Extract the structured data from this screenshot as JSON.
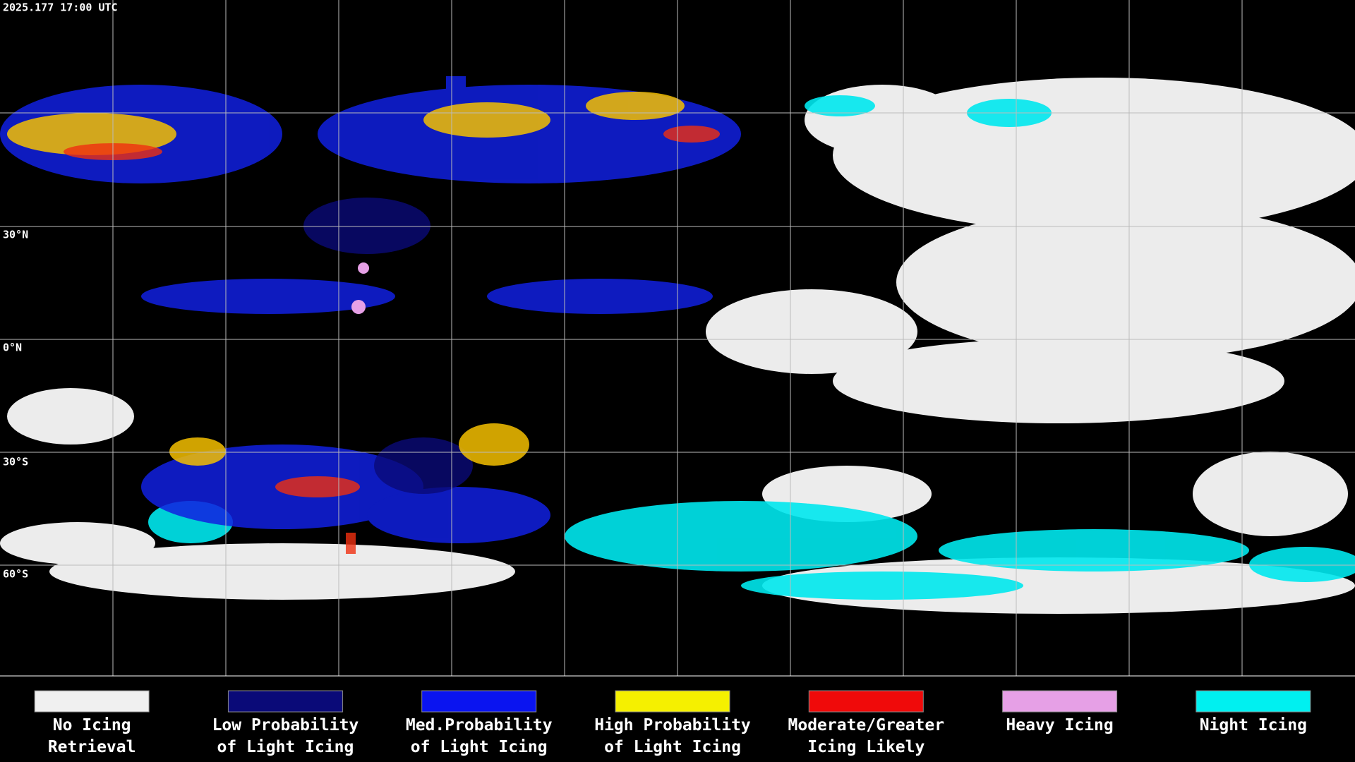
{
  "header": {
    "timestamp": "2025.177 17:00 UTC"
  },
  "latitude_labels": [
    "30°N",
    "0°N",
    "30°S",
    "60°S"
  ],
  "legend": [
    {
      "lines": [
        "No Icing",
        "Retrieval"
      ],
      "color": "#f0f0f0"
    },
    {
      "lines": [
        "Low Probability",
        "of Light Icing"
      ],
      "color": "#0a0a78"
    },
    {
      "lines": [
        "Med.Probability",
        "of Light Icing"
      ],
      "color": "#0a14f0"
    },
    {
      "lines": [
        "High Probability",
        "of Light Icing"
      ],
      "color": "#f5f000"
    },
    {
      "lines": [
        "Moderate/Greater",
        "Icing Likely"
      ],
      "color": "#f00a0a"
    },
    {
      "lines": [
        "Heavy Icing"
      ],
      "color": "#e6a0e6"
    },
    {
      "lines": [
        "Night Icing"
      ],
      "color": "#00f0f0"
    }
  ]
}
